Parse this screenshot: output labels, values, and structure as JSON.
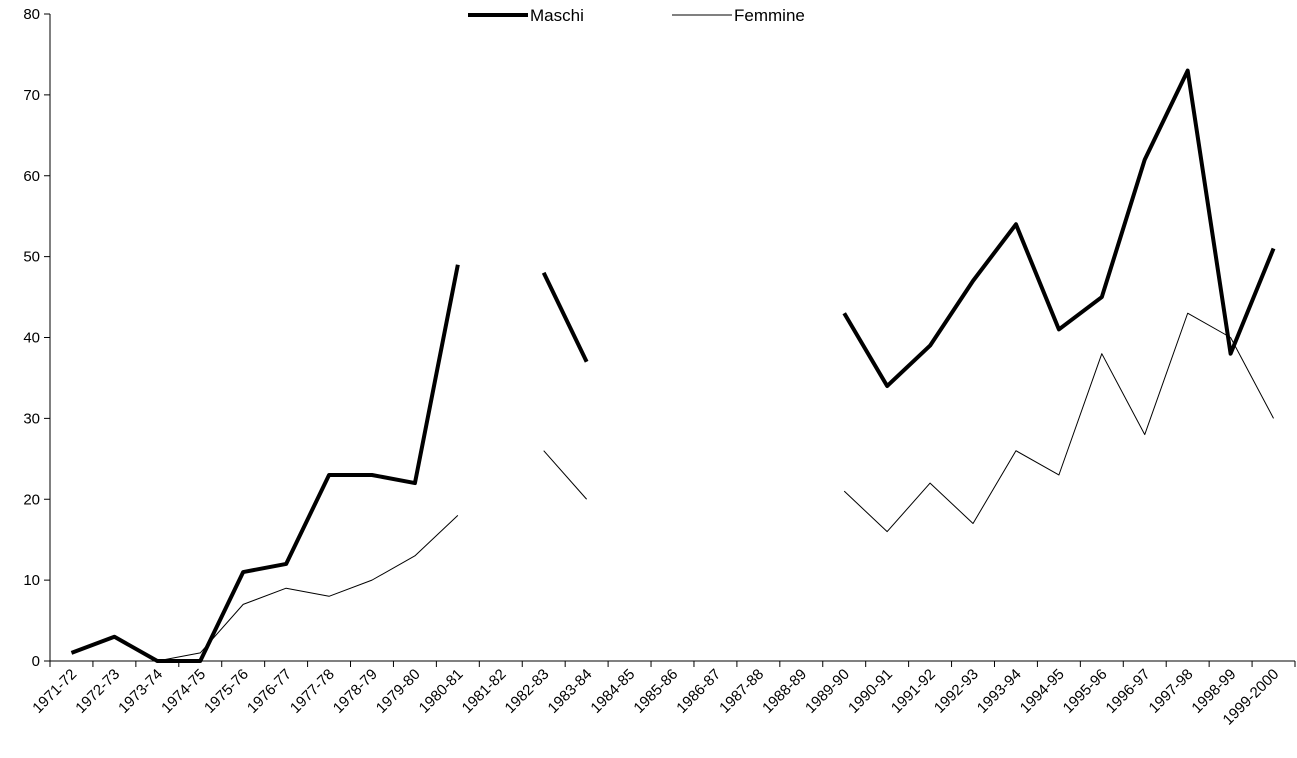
{
  "chart_data": {
    "type": "line",
    "categories": [
      "1971-72",
      "1972-73",
      "1973-74",
      "1974-75",
      "1975-76",
      "1976-77",
      "1977-78",
      "1978-79",
      "1979-80",
      "1980-81",
      "1981-82",
      "1982-83",
      "1983-84",
      "1984-85",
      "1985-86",
      "1986-87",
      "1987-88",
      "1988-89",
      "1989-90",
      "1990-91",
      "1991-92",
      "1992-93",
      "1993-94",
      "1994-95",
      "1995-96",
      "1996-97",
      "1997-98",
      "1998-99",
      "1999-2000"
    ],
    "series": [
      {
        "name": "Maschi",
        "color": "#000000",
        "style": "thick",
        "values": [
          1,
          3,
          0,
          0,
          11,
          12,
          23,
          23,
          22,
          49,
          null,
          48,
          37,
          null,
          null,
          null,
          null,
          null,
          43,
          34,
          39,
          47,
          54,
          41,
          45,
          62,
          73,
          38,
          51
        ]
      },
      {
        "name": "Femmine",
        "color": "#000000",
        "style": "thin",
        "values": [
          0,
          0,
          0,
          1,
          7,
          9,
          8,
          10,
          13,
          18,
          null,
          26,
          20,
          null,
          null,
          null,
          null,
          null,
          21,
          16,
          22,
          17,
          26,
          23,
          38,
          28,
          43,
          40,
          30
        ]
      }
    ],
    "ylim": [
      0,
      80
    ],
    "yticks": [
      0,
      10,
      20,
      30,
      40,
      50,
      60,
      70,
      80
    ],
    "grid": false,
    "legend_position": "top-center"
  }
}
